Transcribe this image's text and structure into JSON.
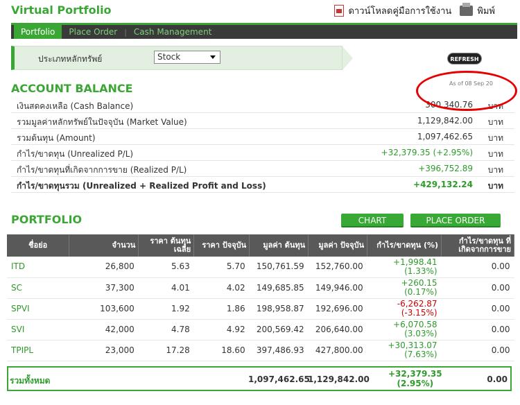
{
  "header": {
    "title": "Virtual Portfolio",
    "manual_link": "ดาวน์โหลดคู่มือการใช้งาน",
    "print_link": "พิมพ์"
  },
  "nav": {
    "tabs": [
      "Portfolio",
      "Place Order",
      "Cash Management"
    ],
    "active": 0
  },
  "filter": {
    "label": "ประเภทหลักทรัพย์",
    "selected": "Stock"
  },
  "refresh_label": "REFRESH",
  "account": {
    "title": "ACCOUNT BALANCE",
    "as_of": "As of 08 Sep 20",
    "unit": "บาท",
    "rows": [
      {
        "label": "เงินสดคงเหลือ (Cash Balance)",
        "value": "300,340.76"
      },
      {
        "label": "รวมมูลค่าหลักทรัพย์ในปัจจุบัน (Market Value)",
        "value": "1,129,842.00"
      },
      {
        "label": "รวมต้นทุน (Amount)",
        "value": "1,097,462.65"
      },
      {
        "label": "กำไร/ขาดทุน (Unrealized P/L)",
        "value": "+32,379.35 (+2.95%)"
      },
      {
        "label": "กำไร/ขาดทุนที่เกิดจากการขาย (Realized P/L)",
        "value": "+396,752.89"
      },
      {
        "label": "กำไร/ขาดทุนรวม (Unrealized + Realized Profit and Loss)",
        "value": "+429,132.24"
      }
    ]
  },
  "portfolio": {
    "title": "PORTFOLIO",
    "chart_button": "CHART",
    "order_button": "PLACE ORDER",
    "headers": [
      "ชื่อย่อ",
      "จำนวน",
      "ราคา ต้นทุนเฉลี่ย",
      "ราคา ปัจจุบัน",
      "มูลค่า ต้นทุน",
      "มูลค่า ปัจจุบัน",
      "กำไร/ขาดทุน (%)",
      "กำไร/ขาดทุน ที่ เกิดจากการขาย"
    ],
    "rows": [
      {
        "symbol": "ITD",
        "qty": "26,800",
        "avg_cost": "5.63",
        "price": "5.70",
        "cost_value": "150,761.59",
        "market_value": "152,760.00",
        "pl": "+1,998.41",
        "pl_pct": "(1.33%)",
        "realized": "0.00"
      },
      {
        "symbol": "SC",
        "qty": "37,300",
        "avg_cost": "4.01",
        "price": "4.02",
        "cost_value": "149,685.85",
        "market_value": "149,946.00",
        "pl": "+260.15",
        "pl_pct": "(0.17%)",
        "realized": "0.00"
      },
      {
        "symbol": "SPVI",
        "qty": "103,600",
        "avg_cost": "1.92",
        "price": "1.86",
        "cost_value": "198,958.87",
        "market_value": "192,696.00",
        "pl": "-6,262.87",
        "pl_pct": "(-3.15%)",
        "realized": "0.00"
      },
      {
        "symbol": "SVI",
        "qty": "42,000",
        "avg_cost": "4.78",
        "price": "4.92",
        "cost_value": "200,569.42",
        "market_value": "206,640.00",
        "pl": "+6,070.58",
        "pl_pct": "(3.03%)",
        "realized": "0.00"
      },
      {
        "symbol": "TPIPL",
        "qty": "23,000",
        "avg_cost": "17.28",
        "price": "18.60",
        "cost_value": "397,486.93",
        "market_value": "427,800.00",
        "pl": "+30,313.07",
        "pl_pct": "(7.63%)",
        "realized": "0.00"
      }
    ],
    "total": {
      "label": "รวมทั้งหมด",
      "cost_value": "1,097,462.65",
      "market_value": "1,129,842.00",
      "pl": "+32,379.35",
      "pl_pct": "(2.95%)",
      "realized": "0.00"
    }
  }
}
